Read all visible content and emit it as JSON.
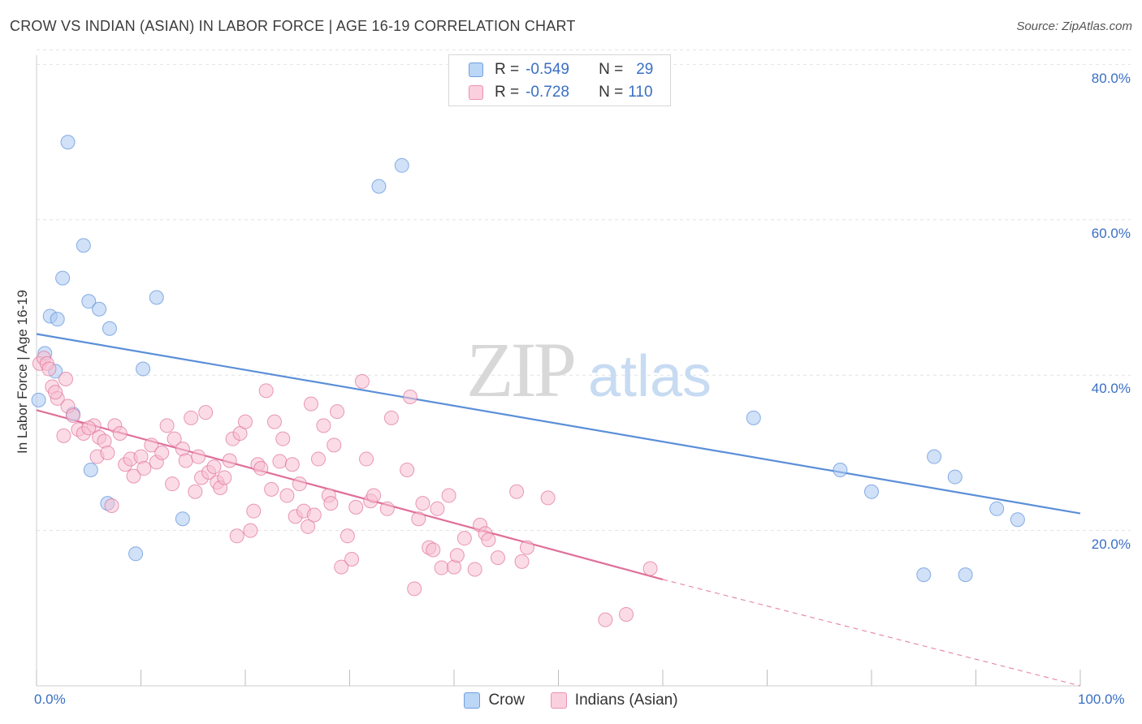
{
  "header": {
    "title": "CROW VS INDIAN (ASIAN) IN LABOR FORCE | AGE 16-19 CORRELATION CHART",
    "source": "Source: ZipAtlas.com"
  },
  "watermark": {
    "zip": "ZIP",
    "atlas": "atlas"
  },
  "stats": {
    "crow": {
      "r_label": "R =",
      "r_value": "-0.549",
      "n_label": "N =",
      "n_value": "29",
      "color": "#a9c9f3"
    },
    "indian": {
      "r_label": "R =",
      "r_value": "-0.728",
      "n_label": "N =",
      "n_value": "110",
      "color": "#f8bfd1"
    }
  },
  "legend": {
    "crow": "Crow",
    "indian": "Indians (Asian)"
  },
  "chart_data": {
    "type": "scatter",
    "title": "CROW VS INDIAN (ASIAN) IN LABOR FORCE | AGE 16-19 CORRELATION CHART",
    "xlabel": "",
    "ylabel": "In Labor Force | Age 16-19",
    "xlim": [
      0,
      100
    ],
    "ylim": [
      0,
      82
    ],
    "x_tick_labels": [
      "0.0%",
      "100.0%"
    ],
    "y_tick_labels": [
      "20.0%",
      "40.0%",
      "60.0%",
      "80.0%"
    ],
    "y_ticks": [
      20,
      40,
      60,
      80
    ],
    "grid": true,
    "legend_position": "bottom-center",
    "series": [
      {
        "name": "Crow",
        "color": "#5b8fd8",
        "fill": "#a9c9f3",
        "trend": {
          "x0": 0,
          "y0": 45.3,
          "x1": 100,
          "y1": 22.2
        },
        "points": [
          [
            3.0,
            70.0
          ],
          [
            4.5,
            56.7
          ],
          [
            2.5,
            52.5
          ],
          [
            5.0,
            49.5
          ],
          [
            6.0,
            48.5
          ],
          [
            11.5,
            50.0
          ],
          [
            1.3,
            47.6
          ],
          [
            2.0,
            47.2
          ],
          [
            7.0,
            46.0
          ],
          [
            0.8,
            42.8
          ],
          [
            1.8,
            40.5
          ],
          [
            10.2,
            40.8
          ],
          [
            0.2,
            36.8
          ],
          [
            3.5,
            35.0
          ],
          [
            5.2,
            27.8
          ],
          [
            6.8,
            23.5
          ],
          [
            14.0,
            21.5
          ],
          [
            9.5,
            17.0
          ],
          [
            32.8,
            64.3
          ],
          [
            35.0,
            67.0
          ],
          [
            68.7,
            34.5
          ],
          [
            77.0,
            27.8
          ],
          [
            80.0,
            25.0
          ],
          [
            86.0,
            29.5
          ],
          [
            88.0,
            26.9
          ],
          [
            92.0,
            22.8
          ],
          [
            94.0,
            21.4
          ],
          [
            85.0,
            14.3
          ],
          [
            89.0,
            14.3
          ]
        ]
      },
      {
        "name": "Indians (Asian)",
        "color": "#e0709a",
        "fill": "#f8bfd1",
        "trend": {
          "x0": 0,
          "y0": 35.5,
          "x1": 60,
          "y1": 13.7
        },
        "trend_dashed": {
          "x0": 60,
          "y0": 13.7,
          "x1": 100,
          "y1": 0.0
        },
        "points": [
          [
            0.3,
            41.5
          ],
          [
            0.7,
            42.2
          ],
          [
            1.0,
            41.5
          ],
          [
            1.2,
            40.8
          ],
          [
            1.5,
            38.5
          ],
          [
            2.0,
            37.0
          ],
          [
            1.8,
            37.8
          ],
          [
            3.0,
            36.0
          ],
          [
            3.5,
            34.8
          ],
          [
            4.0,
            33.0
          ],
          [
            2.6,
            32.2
          ],
          [
            4.5,
            32.5
          ],
          [
            5.5,
            33.5
          ],
          [
            5.0,
            33.2
          ],
          [
            6.0,
            32.0
          ],
          [
            6.5,
            31.5
          ],
          [
            7.5,
            33.5
          ],
          [
            8.0,
            32.5
          ],
          [
            5.8,
            29.5
          ],
          [
            6.8,
            30.0
          ],
          [
            7.2,
            23.2
          ],
          [
            8.5,
            28.5
          ],
          [
            9.0,
            29.2
          ],
          [
            9.3,
            27.0
          ],
          [
            10.0,
            29.5
          ],
          [
            10.3,
            28.0
          ],
          [
            11.0,
            31.0
          ],
          [
            11.5,
            28.8
          ],
          [
            12.0,
            30.0
          ],
          [
            12.5,
            33.5
          ],
          [
            13.0,
            26.0
          ],
          [
            13.2,
            31.8
          ],
          [
            14.0,
            30.5
          ],
          [
            14.3,
            29.0
          ],
          [
            14.8,
            34.5
          ],
          [
            15.2,
            25.0
          ],
          [
            15.5,
            29.5
          ],
          [
            15.8,
            26.8
          ],
          [
            16.2,
            35.2
          ],
          [
            16.5,
            27.5
          ],
          [
            17.0,
            28.2
          ],
          [
            17.3,
            26.2
          ],
          [
            17.6,
            25.5
          ],
          [
            18.0,
            26.8
          ],
          [
            18.5,
            29.0
          ],
          [
            18.8,
            31.8
          ],
          [
            19.2,
            19.3
          ],
          [
            19.5,
            32.5
          ],
          [
            20.0,
            34.0
          ],
          [
            20.5,
            20.0
          ],
          [
            20.8,
            22.5
          ],
          [
            21.2,
            28.5
          ],
          [
            21.5,
            28.0
          ],
          [
            22.0,
            38.0
          ],
          [
            22.5,
            25.3
          ],
          [
            22.8,
            34.0
          ],
          [
            23.3,
            28.9
          ],
          [
            23.6,
            31.8
          ],
          [
            24.0,
            24.5
          ],
          [
            24.5,
            28.5
          ],
          [
            24.8,
            21.8
          ],
          [
            25.2,
            26.0
          ],
          [
            25.6,
            22.5
          ],
          [
            26.0,
            20.5
          ],
          [
            26.3,
            36.3
          ],
          [
            26.6,
            22.0
          ],
          [
            27.0,
            29.2
          ],
          [
            27.5,
            33.5
          ],
          [
            28.0,
            24.5
          ],
          [
            28.2,
            23.5
          ],
          [
            28.5,
            31.0
          ],
          [
            28.8,
            35.3
          ],
          [
            29.2,
            15.3
          ],
          [
            29.8,
            19.3
          ],
          [
            30.2,
            16.3
          ],
          [
            30.6,
            23.0
          ],
          [
            31.2,
            39.2
          ],
          [
            31.6,
            29.2
          ],
          [
            32.0,
            23.8
          ],
          [
            32.3,
            24.5
          ],
          [
            33.6,
            22.8
          ],
          [
            34.0,
            34.5
          ],
          [
            35.5,
            27.8
          ],
          [
            35.8,
            37.2
          ],
          [
            36.2,
            12.5
          ],
          [
            36.6,
            21.5
          ],
          [
            37.0,
            23.5
          ],
          [
            37.6,
            17.8
          ],
          [
            38.0,
            17.5
          ],
          [
            38.4,
            22.8
          ],
          [
            38.8,
            15.2
          ],
          [
            39.5,
            24.5
          ],
          [
            40.0,
            15.3
          ],
          [
            40.3,
            16.8
          ],
          [
            41.0,
            19.0
          ],
          [
            42.0,
            15.0
          ],
          [
            42.5,
            20.7
          ],
          [
            43.0,
            19.6
          ],
          [
            43.3,
            18.8
          ],
          [
            44.2,
            16.5
          ],
          [
            46.0,
            25.0
          ],
          [
            46.5,
            16.0
          ],
          [
            47.0,
            17.8
          ],
          [
            49.0,
            24.2
          ],
          [
            54.5,
            8.5
          ],
          [
            56.5,
            9.2
          ],
          [
            58.8,
            15.1
          ],
          [
            2.8,
            39.5
          ]
        ]
      }
    ]
  }
}
